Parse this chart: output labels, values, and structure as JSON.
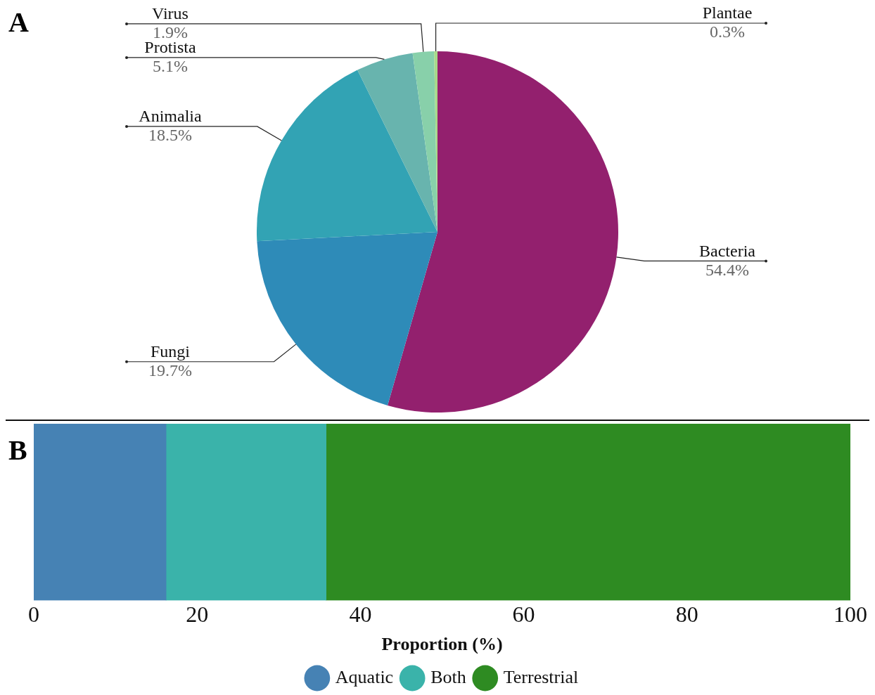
{
  "chart_data": [
    {
      "type": "pie",
      "title": "A",
      "categories": [
        "Bacteria",
        "Fungi",
        "Animalia",
        "Protista",
        "Virus",
        "Plantae"
      ],
      "values": [
        54.4,
        19.7,
        18.5,
        5.1,
        1.9,
        0.3
      ],
      "colors": [
        "#93206e",
        "#2e8bb8",
        "#32a3b4",
        "#68b4ae",
        "#88d0aa",
        "#a8d88a"
      ],
      "value_labels": [
        "54.4%",
        "19.7%",
        "18.5%",
        "5.1%",
        "1.9%",
        "0.3%"
      ],
      "legend": false
    },
    {
      "type": "bar",
      "title": "B",
      "orientation": "horizontal",
      "stacked": true,
      "categories": [
        null
      ],
      "xlabel": "Proportion (%)",
      "xlim": [
        0,
        100
      ],
      "xticks": [
        0,
        20,
        40,
        60,
        80,
        100
      ],
      "grid": false,
      "legend": "bottom",
      "series": [
        {
          "name": "Aquatic",
          "color": "#4682b4",
          "values": [
            16.2
          ]
        },
        {
          "name": "Both",
          "color": "#3ab3aa",
          "values": [
            19.6
          ]
        },
        {
          "name": "Terrestrial",
          "color": "#2e8b22",
          "values": [
            64.2
          ]
        }
      ]
    }
  ]
}
